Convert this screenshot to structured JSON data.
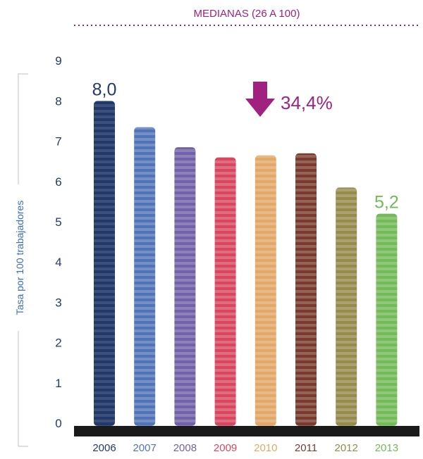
{
  "chart_data": {
    "type": "bar",
    "title": "MEDIANAS (26 A 100)",
    "ylabel": "Tasa por 100 trabajadores",
    "xlabel": "",
    "ylim": [
      0,
      9
    ],
    "yticks": [
      0,
      1,
      2,
      3,
      4,
      5,
      6,
      7,
      8,
      9
    ],
    "grid": false,
    "categories": [
      "2006",
      "2007",
      "2008",
      "2009",
      "2010",
      "2011",
      "2012",
      "2013"
    ],
    "values": [
      8.0,
      7.35,
      6.85,
      6.6,
      6.65,
      6.7,
      5.85,
      5.2
    ],
    "colors": [
      "#24396b",
      "#5174b8",
      "#7161a8",
      "#d8475f",
      "#e2a868",
      "#7a3b2e",
      "#958b4c",
      "#74ba58"
    ],
    "data_labels": [
      {
        "index": 0,
        "text": "8,0"
      },
      {
        "index": 7,
        "text": "5,2"
      }
    ],
    "annotation": {
      "text": "34,4%",
      "direction": "down"
    }
  }
}
